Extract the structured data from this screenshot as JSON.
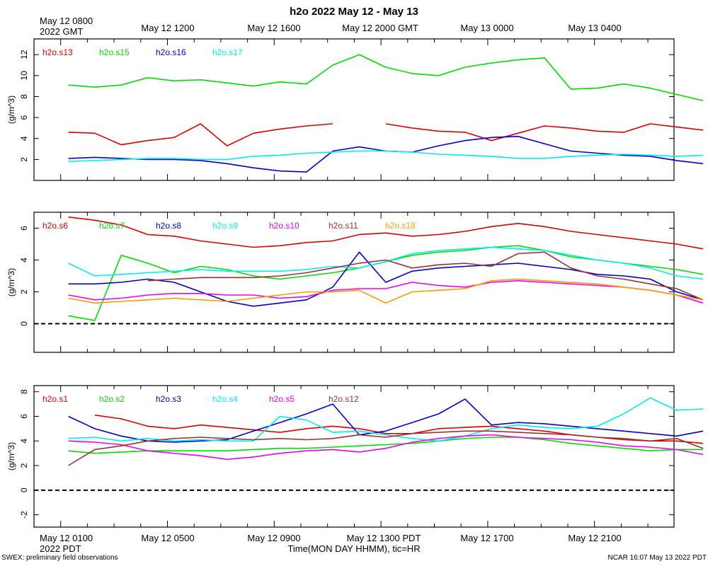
{
  "figure": {
    "title": "h2o 2022 May 12 - May 13",
    "top_axis": {
      "corner_label": [
        "May 12 0800",
        "2022 GMT"
      ],
      "tick_labels": [
        "May 12 1200",
        "May 12 1600",
        "May 12 2000 GMT",
        "May 13 0000",
        "May 13 0400"
      ]
    },
    "bottom_axis": {
      "corner_label": [
        "May 12 0100",
        "2022 PDT"
      ],
      "tick_labels": [
        "May 12 0500",
        "May 12 0900",
        "May 12 1300 PDT",
        "May 12 1700",
        "May 12 2100"
      ],
      "xlabel": "Time(MON DAY HHMM), tic=HR"
    },
    "footer_left": "SWEX: preliminary field observations",
    "footer_right": "NCAR 16:07 May 13 2022 PDT"
  },
  "chart_data": [
    {
      "type": "line",
      "panel": "top",
      "ylabel": "(g/m^3)",
      "ylim": [
        0,
        13.5
      ],
      "yticks": [
        2,
        4,
        6,
        8,
        10,
        12
      ],
      "x": [
        0,
        1,
        2,
        3,
        4,
        5,
        6,
        7,
        8,
        9,
        10,
        11,
        12,
        13,
        14,
        15,
        16,
        17,
        18,
        19,
        20,
        21,
        22,
        23,
        24
      ],
      "xlim": [
        -1.3,
        22.9
      ],
      "series": [
        {
          "name": "h2o.s13",
          "color": "#dd0000",
          "values": [
            4.6,
            4.5,
            3.4,
            3.8,
            4.1,
            5.4,
            3.3,
            4.5,
            4.9,
            5.2,
            5.4,
            null,
            5.4,
            5.0,
            4.7,
            4.6,
            3.8,
            4.5,
            5.2,
            5.0,
            4.7,
            4.6,
            5.4,
            5.1,
            4.8
          ]
        },
        {
          "name": "h2o.s15",
          "color": "#00dd00",
          "values": [
            9.1,
            8.9,
            9.1,
            9.8,
            9.5,
            9.6,
            9.3,
            9.0,
            9.4,
            9.2,
            11.0,
            12.0,
            10.8,
            10.2,
            10.0,
            10.8,
            11.2,
            11.5,
            11.7,
            8.7,
            8.8,
            9.2,
            8.8,
            8.2,
            7.6
          ]
        },
        {
          "name": "h2o.s16",
          "color": "#0000cc",
          "values": [
            2.1,
            2.2,
            2.1,
            2.0,
            2.0,
            1.9,
            1.6,
            1.2,
            0.9,
            0.8,
            2.8,
            3.2,
            2.8,
            2.7,
            3.3,
            3.8,
            4.1,
            4.2,
            3.5,
            2.8,
            2.6,
            2.4,
            2.3,
            1.9,
            1.6
          ]
        },
        {
          "name": "h2o.s17",
          "color": "#00eeee",
          "values": [
            1.8,
            1.9,
            2.0,
            2.1,
            2.1,
            2.0,
            2.0,
            2.3,
            2.4,
            2.6,
            2.7,
            2.8,
            2.8,
            2.7,
            2.5,
            2.4,
            2.3,
            2.1,
            2.1,
            2.3,
            2.4,
            2.5,
            2.4,
            2.3,
            2.4
          ]
        }
      ]
    },
    {
      "type": "line",
      "panel": "middle",
      "ylabel": "(g/m^3)",
      "ylim": [
        -1.8,
        7.0
      ],
      "yticks": [
        0,
        2,
        4,
        6
      ],
      "reference_line": 0,
      "x": [
        0,
        1,
        2,
        3,
        4,
        5,
        6,
        7,
        8,
        9,
        10,
        11,
        12,
        13,
        14,
        15,
        16,
        17,
        18,
        19,
        20,
        21,
        22,
        23,
        24
      ],
      "xlim": [
        -1.3,
        22.9
      ],
      "series": [
        {
          "name": "h2o.s6",
          "color": "#dd0000",
          "values": [
            6.7,
            6.5,
            6.2,
            5.6,
            5.5,
            5.2,
            5.0,
            4.8,
            4.9,
            5.1,
            5.2,
            5.6,
            5.7,
            5.5,
            5.6,
            5.8,
            6.1,
            6.3,
            6.1,
            5.8,
            5.6,
            5.4,
            5.2,
            5.0,
            4.7
          ]
        },
        {
          "name": "h2o.s7",
          "color": "#00dd00",
          "values": [
            0.5,
            0.2,
            4.3,
            3.8,
            3.2,
            3.6,
            3.4,
            3.0,
            2.8,
            3.0,
            3.2,
            3.5,
            3.9,
            4.3,
            4.5,
            4.6,
            4.8,
            4.9,
            4.6,
            4.2,
            4.0,
            3.8,
            3.6,
            3.4,
            3.1
          ]
        },
        {
          "name": "h2o.s8",
          "color": "#0000cc",
          "values": [
            2.5,
            2.5,
            2.6,
            2.8,
            2.6,
            2.0,
            1.4,
            1.1,
            1.3,
            1.5,
            2.3,
            4.5,
            2.6,
            3.3,
            3.5,
            3.6,
            3.7,
            3.8,
            3.6,
            3.4,
            3.1,
            3.0,
            2.8,
            2.0,
            1.5
          ]
        },
        {
          "name": "h2o.s9",
          "color": "#00eeee",
          "values": [
            3.8,
            3.0,
            3.1,
            3.2,
            3.3,
            3.4,
            3.3,
            3.3,
            3.3,
            3.4,
            3.6,
            3.5,
            3.9,
            4.4,
            4.6,
            4.7,
            4.8,
            4.7,
            4.6,
            4.3,
            4.0,
            3.8,
            3.5,
            3.0,
            2.8
          ]
        },
        {
          "name": "h2o.s10",
          "color": "#ee00ee",
          "values": [
            1.8,
            1.5,
            1.6,
            1.8,
            1.9,
            1.9,
            1.8,
            1.8,
            1.6,
            1.7,
            2.1,
            2.2,
            2.2,
            2.6,
            2.4,
            2.3,
            2.6,
            2.7,
            2.6,
            2.5,
            2.4,
            2.3,
            2.1,
            1.8,
            1.3
          ]
        },
        {
          "name": "h2o.s11",
          "color": "#993333",
          "values": [
            null,
            null,
            null,
            2.7,
            2.8,
            2.9,
            2.9,
            2.9,
            3.0,
            3.2,
            3.5,
            3.8,
            4.0,
            3.5,
            3.7,
            3.8,
            3.6,
            4.4,
            4.5,
            3.5,
            3.0,
            2.8,
            2.5,
            2.2,
            1.5
          ]
        },
        {
          "name": "h2o.s18",
          "color": "#ff9900",
          "values": [
            1.6,
            1.3,
            1.4,
            1.5,
            1.6,
            1.5,
            1.4,
            1.6,
            1.8,
            2.0,
            2.0,
            2.1,
            1.3,
            2.0,
            2.1,
            2.2,
            2.7,
            2.8,
            2.7,
            2.6,
            2.5,
            2.3,
            2.1,
            1.8,
            1.5
          ]
        }
      ]
    },
    {
      "type": "line",
      "panel": "bottom",
      "ylabel": "(g/m^3)",
      "ylim": [
        -3.0,
        8.5
      ],
      "yticks": [
        -2,
        0,
        2,
        4,
        6,
        8
      ],
      "reference_line": 0,
      "x": [
        0,
        1,
        2,
        3,
        4,
        5,
        6,
        7,
        8,
        9,
        10,
        11,
        12,
        13,
        14,
        15,
        16,
        17,
        18,
        19,
        20,
        21,
        22,
        23,
        24
      ],
      "xlim": [
        -1.3,
        22.9
      ],
      "series": [
        {
          "name": "h2o.s1",
          "color": "#dd0000",
          "values": [
            null,
            6.1,
            5.8,
            5.2,
            5.0,
            5.3,
            5.1,
            4.9,
            4.7,
            5.0,
            5.2,
            5.0,
            4.6,
            4.6,
            5.0,
            5.1,
            5.2,
            5.0,
            4.8,
            4.5,
            4.3,
            4.1,
            4.0,
            4.0,
            3.8
          ]
        },
        {
          "name": "h2o.s2",
          "color": "#00dd00",
          "values": [
            3.2,
            3.0,
            3.1,
            3.2,
            3.2,
            3.2,
            3.2,
            3.3,
            3.4,
            3.4,
            3.5,
            3.6,
            3.7,
            3.8,
            4.0,
            4.2,
            4.3,
            4.3,
            4.1,
            3.8,
            3.6,
            3.4,
            3.2,
            3.3,
            3.3
          ]
        },
        {
          "name": "h2o.s3",
          "color": "#0000cc",
          "values": [
            6.0,
            5.0,
            4.4,
            4.0,
            3.9,
            4.0,
            4.1,
            4.8,
            5.5,
            6.2,
            7.0,
            4.5,
            4.8,
            5.5,
            6.2,
            7.4,
            5.3,
            5.5,
            5.4,
            5.2,
            5.0,
            4.8,
            4.6,
            4.4,
            4.8
          ]
        },
        {
          "name": "h2o.s4",
          "color": "#00eeee",
          "values": [
            4.2,
            4.3,
            4.0,
            4.2,
            4.0,
            4.1,
            4.0,
            4.0,
            6.0,
            5.7,
            4.7,
            4.8,
            4.5,
            4.2,
            4.0,
            4.4,
            5.0,
            5.3,
            5.1,
            5.0,
            5.2,
            6.2,
            7.5,
            6.5,
            6.6
          ]
        },
        {
          "name": "h2o.s5",
          "color": "#ee00ee",
          "values": [
            4.0,
            3.9,
            3.7,
            3.2,
            3.0,
            2.8,
            2.5,
            2.7,
            3.0,
            3.2,
            3.3,
            3.1,
            3.4,
            3.9,
            4.2,
            4.4,
            4.5,
            4.3,
            4.2,
            4.1,
            3.9,
            3.6,
            3.5,
            3.3,
            2.9
          ]
        },
        {
          "name": "h2o.s12",
          "color": "#993333",
          "values": [
            2.0,
            3.3,
            3.6,
            4.0,
            4.2,
            4.3,
            4.2,
            4.1,
            4.2,
            4.1,
            4.2,
            4.5,
            4.3,
            4.6,
            4.7,
            4.8,
            4.8,
            4.7,
            4.6,
            4.5,
            4.3,
            4.2,
            4.0,
            4.2,
            3.4
          ]
        }
      ]
    }
  ]
}
